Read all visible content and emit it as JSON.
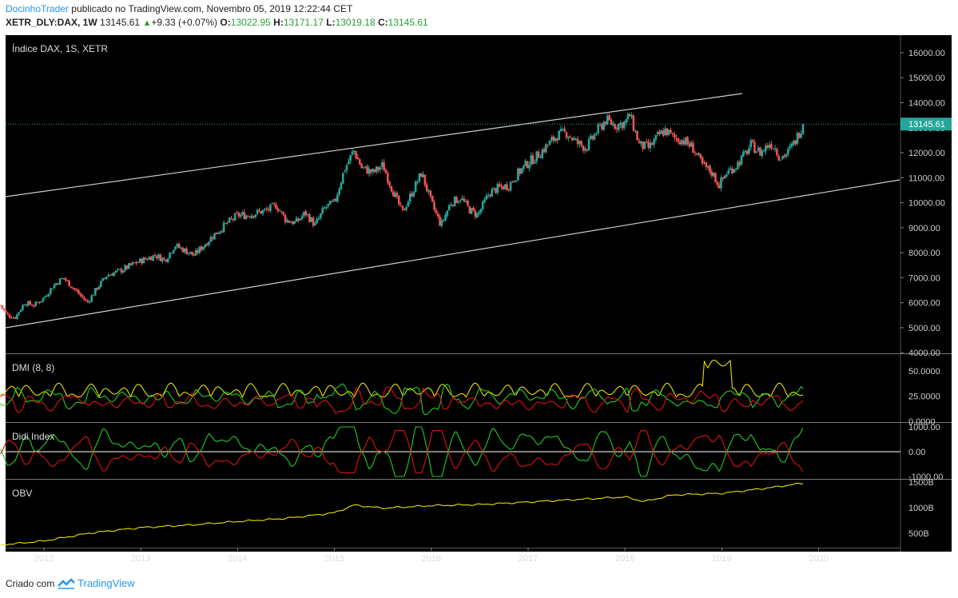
{
  "header": {
    "author": "DocinhoTrader",
    "published_text": "publicado no TradingView.com, Novembro 05, 2019 12:22:44 CET",
    "symbol": "XETR_DLY:DAX, 1W",
    "last_price": "13145.61",
    "change_arrow": "▲",
    "change": "+9.33 (+0.07%)",
    "open_label": "O:",
    "open": "13022.95",
    "high_label": "H:",
    "high": "13171.17",
    "low_label": "L:",
    "low": "13019.18",
    "close_label": "C:",
    "close": "13145.61"
  },
  "footer": {
    "created_with": "Criado com",
    "brand": "TradingView"
  },
  "colors": {
    "background": "#000000",
    "up": "#26a69a",
    "down": "#ef5350",
    "green_line": "#22cc22",
    "red_line": "#e01010",
    "yellow_line": "#e8e000",
    "channel": "#cfcfcf",
    "price_tag": "#26a69a"
  },
  "chart_data": [
    {
      "type": "candlestick",
      "title": "Índice DAX, 1S, XETR",
      "y_axis_ticks": [
        "16000.00",
        "15000.00",
        "14000.00",
        "13000.00",
        "12000.00",
        "11000.00",
        "10000.00",
        "9000.00",
        "8000.00",
        "7000.00",
        "6000.00",
        "5000.00",
        "4000.00"
      ],
      "ylim": [
        4000,
        16000
      ],
      "x_tick_labels": [
        "2012",
        "2013",
        "2014",
        "2015",
        "2016",
        "2017",
        "2018",
        "2019",
        "2020"
      ],
      "last_value_label": "13145.61",
      "last_value": 13145.61,
      "x_range": [
        2011.55,
        2020.95
      ],
      "close_path": [
        [
          2011.55,
          5900
        ],
        [
          2011.62,
          5500
        ],
        [
          2011.7,
          5400
        ],
        [
          2011.8,
          6000
        ],
        [
          2011.9,
          5900
        ],
        [
          2012.0,
          6200
        ],
        [
          2012.1,
          6700
        ],
        [
          2012.2,
          7000
        ],
        [
          2012.3,
          6600
        ],
        [
          2012.4,
          6200
        ],
        [
          2012.45,
          6000
        ],
        [
          2012.55,
          6600
        ],
        [
          2012.65,
          7100
        ],
        [
          2012.8,
          7300
        ],
        [
          2012.95,
          7600
        ],
        [
          2013.05,
          7750
        ],
        [
          2013.15,
          7900
        ],
        [
          2013.25,
          7700
        ],
        [
          2013.35,
          8300
        ],
        [
          2013.45,
          8100
        ],
        [
          2013.55,
          7900
        ],
        [
          2013.65,
          8300
        ],
        [
          2013.75,
          8700
        ],
        [
          2013.9,
          9200
        ],
        [
          2014.0,
          9500
        ],
        [
          2014.1,
          9500
        ],
        [
          2014.2,
          9600
        ],
        [
          2014.3,
          9700
        ],
        [
          2014.4,
          9900
        ],
        [
          2014.5,
          9300
        ],
        [
          2014.6,
          9200
        ],
        [
          2014.7,
          9600
        ],
        [
          2014.8,
          9100
        ],
        [
          2014.9,
          9800
        ],
        [
          2015.0,
          10000
        ],
        [
          2015.1,
          11300
        ],
        [
          2015.2,
          12100
        ],
        [
          2015.28,
          11400
        ],
        [
          2015.4,
          11200
        ],
        [
          2015.5,
          11500
        ],
        [
          2015.6,
          10500
        ],
        [
          2015.7,
          9600
        ],
        [
          2015.8,
          10400
        ],
        [
          2015.9,
          11200
        ],
        [
          2016.0,
          10000
        ],
        [
          2016.1,
          9100
        ],
        [
          2016.2,
          10000
        ],
        [
          2016.3,
          10200
        ],
        [
          2016.4,
          9700
        ],
        [
          2016.48,
          9500
        ],
        [
          2016.6,
          10400
        ],
        [
          2016.7,
          10600
        ],
        [
          2016.8,
          10700
        ],
        [
          2016.9,
          11200
        ],
        [
          2017.0,
          11600
        ],
        [
          2017.1,
          11900
        ],
        [
          2017.2,
          12300
        ],
        [
          2017.3,
          12700
        ],
        [
          2017.4,
          12800
        ],
        [
          2017.5,
          12400
        ],
        [
          2017.6,
          12200
        ],
        [
          2017.7,
          12800
        ],
        [
          2017.8,
          13300
        ],
        [
          2017.9,
          13100
        ],
        [
          2018.0,
          13200
        ],
        [
          2018.05,
          13500
        ],
        [
          2018.15,
          12300
        ],
        [
          2018.25,
          12200
        ],
        [
          2018.35,
          12700
        ],
        [
          2018.42,
          12900
        ],
        [
          2018.5,
          12600
        ],
        [
          2018.6,
          12500
        ],
        [
          2018.7,
          12200
        ],
        [
          2018.8,
          11500
        ],
        [
          2018.9,
          11200
        ],
        [
          2018.97,
          10700
        ],
        [
          2019.05,
          11200
        ],
        [
          2019.15,
          11500
        ],
        [
          2019.25,
          12000
        ],
        [
          2019.3,
          12300
        ],
        [
          2019.4,
          12000
        ],
        [
          2019.5,
          12400
        ],
        [
          2019.55,
          12200
        ],
        [
          2019.6,
          11800
        ],
        [
          2019.68,
          12000
        ],
        [
          2019.75,
          12400
        ],
        [
          2019.84,
          13145.61
        ]
      ]
    },
    {
      "type": "line",
      "title": "DMI (8, 8)",
      "y_axis_ticks": [
        "50.0000",
        "25.0000",
        "0.0000"
      ],
      "ylim": [
        0,
        65
      ],
      "series": [
        {
          "color": "yellow"
        },
        {
          "color": "green"
        },
        {
          "color": "red"
        }
      ]
    },
    {
      "type": "line",
      "title": "Didi Index",
      "y_axis_ticks": [
        "1000.00",
        "0.00",
        "-1000.00"
      ],
      "ylim": [
        -1000,
        1000
      ],
      "series": [
        {
          "color": "green"
        },
        {
          "color": "red"
        }
      ]
    },
    {
      "type": "line",
      "title": "OBV",
      "y_axis_ticks": [
        "1500B",
        "1000B",
        "500B"
      ],
      "ylim": [
        250,
        1500
      ],
      "x": [
        2011.55,
        2012.0,
        2012.5,
        2013.0,
        2013.5,
        2014.0,
        2014.5,
        2015.0,
        2015.2,
        2015.5,
        2016.0,
        2016.5,
        2017.0,
        2017.5,
        2018.0,
        2018.2,
        2018.5,
        2019.0,
        2019.5,
        2019.84
      ],
      "values": [
        270,
        350,
        510,
        610,
        660,
        730,
        790,
        900,
        1050,
        990,
        1040,
        1060,
        1110,
        1160,
        1210,
        1120,
        1250,
        1280,
        1390,
        1480
      ]
    }
  ]
}
